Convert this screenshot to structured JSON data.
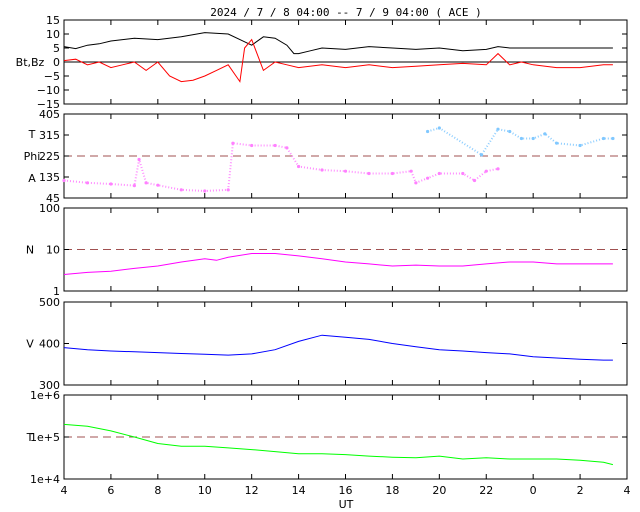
{
  "chart_data": {
    "type": "line",
    "title": "2024 /  7 /  8   04:00 -- 7 /  9   04:00 ( ACE )",
    "xlabel": "UT",
    "x_ticks": [
      "4",
      "6",
      "8",
      "10",
      "12",
      "14",
      "16",
      "18",
      "20",
      "22",
      "0",
      "2",
      "4"
    ],
    "x_range_hours": [
      4,
      28
    ],
    "panels": [
      {
        "id": "mag",
        "ylabel": "Bt,Bz",
        "ylim": [
          -15,
          15
        ],
        "yticks": [
          "15",
          "10",
          "5",
          "0",
          "−5",
          "−10",
          "−15"
        ],
        "ref_line": 0,
        "ref_style": "solid",
        "series": [
          {
            "label": "Bt",
            "color": "#000000",
            "points": [
              [
                4,
                5.5
              ],
              [
                4.5,
                4.8
              ],
              [
                5,
                6
              ],
              [
                5.5,
                6.5
              ],
              [
                6,
                7.5
              ],
              [
                7,
                8.5
              ],
              [
                8,
                8
              ],
              [
                9,
                9
              ],
              [
                10,
                10.5
              ],
              [
                11,
                10
              ],
              [
                11.5,
                8
              ],
              [
                12,
                6
              ],
              [
                12.5,
                9
              ],
              [
                13,
                8.5
              ],
              [
                13.5,
                6
              ],
              [
                13.8,
                3
              ],
              [
                14,
                3
              ],
              [
                14.5,
                4
              ],
              [
                15,
                5
              ],
              [
                16,
                4.5
              ],
              [
                17,
                5.5
              ],
              [
                18,
                5
              ],
              [
                19,
                4.5
              ],
              [
                20,
                5
              ],
              [
                21,
                4
              ],
              [
                22,
                4.5
              ],
              [
                22.5,
                5.5
              ],
              [
                23,
                5
              ],
              [
                24,
                5
              ],
              [
                25,
                5
              ],
              [
                26,
                5
              ],
              [
                27,
                5
              ],
              [
                27.4,
                5
              ]
            ]
          },
          {
            "label": "Bz",
            "color": "#ff0000",
            "points": [
              [
                4,
                0.5
              ],
              [
                4.5,
                1
              ],
              [
                5,
                -1
              ],
              [
                5.5,
                0
              ],
              [
                6,
                -2
              ],
              [
                6.5,
                -1
              ],
              [
                7,
                0
              ],
              [
                7.5,
                -3
              ],
              [
                8,
                0
              ],
              [
                8.5,
                -5
              ],
              [
                9,
                -7
              ],
              [
                9.5,
                -6.5
              ],
              [
                10,
                -5
              ],
              [
                10.5,
                -3
              ],
              [
                11,
                -1
              ],
              [
                11.5,
                -7
              ],
              [
                11.7,
                5
              ],
              [
                12,
                8
              ],
              [
                12.5,
                -3
              ],
              [
                13,
                0
              ],
              [
                13.5,
                -1
              ],
              [
                14,
                -2
              ],
              [
                15,
                -1
              ],
              [
                16,
                -2
              ],
              [
                17,
                -1
              ],
              [
                18,
                -2
              ],
              [
                19,
                -1.5
              ],
              [
                20,
                -1
              ],
              [
                21,
                -0.5
              ],
              [
                22,
                -1
              ],
              [
                22.5,
                3
              ],
              [
                23,
                -1
              ],
              [
                23.5,
                0
              ],
              [
                24,
                -1
              ],
              [
                25,
                -2
              ],
              [
                26,
                -2
              ],
              [
                27,
                -1
              ],
              [
                27.4,
                -1
              ]
            ]
          }
        ]
      },
      {
        "id": "phi",
        "ylabel_lines": [
          "T",
          "Phi",
          "A"
        ],
        "ylim": [
          45,
          405
        ],
        "yticks": [
          "405",
          "315",
          "225",
          "135",
          "45"
        ],
        "ref_line": 225,
        "ref_style": "dashed",
        "series": [
          {
            "label": "Phi",
            "color": "#ff80ff",
            "points": [
              [
                4,
                120
              ],
              [
                5,
                110
              ],
              [
                6,
                105
              ],
              [
                7,
                98
              ],
              [
                7.2,
                210
              ],
              [
                7.5,
                110
              ],
              [
                8,
                100
              ],
              [
                9,
                80
              ],
              [
                10,
                75
              ],
              [
                11,
                80
              ],
              [
                11.2,
                280
              ],
              [
                12,
                270
              ],
              [
                13,
                270
              ],
              [
                13.5,
                260
              ],
              [
                14,
                180
              ],
              [
                15,
                165
              ],
              [
                16,
                160
              ],
              [
                17,
                150
              ],
              [
                18,
                150
              ],
              [
                18.8,
                160
              ],
              [
                19,
                110
              ],
              [
                19.5,
                130
              ],
              [
                20,
                150
              ],
              [
                21,
                150
              ],
              [
                21.5,
                120
              ],
              [
                22,
                160
              ],
              [
                22.5,
                170
              ]
            ]
          },
          {
            "label": "T",
            "color": "#80c8ff",
            "points": [
              [
                19.5,
                330
              ],
              [
                20,
                345
              ],
              [
                21.8,
                230
              ],
              [
                22.5,
                340
              ],
              [
                23,
                330
              ],
              [
                23.5,
                300
              ],
              [
                24,
                300
              ],
              [
                24.5,
                320
              ],
              [
                25,
                280
              ],
              [
                26,
                270
              ],
              [
                27,
                300
              ],
              [
                27.4,
                300
              ]
            ]
          }
        ]
      },
      {
        "id": "density",
        "ylabel": "N",
        "scale": "log",
        "ylim": [
          1,
          100
        ],
        "yticks": [
          "100",
          "10",
          "1"
        ],
        "ref_line": 10,
        "ref_style": "dashed",
        "series": [
          {
            "label": "N",
            "color": "#ff00ff",
            "points": [
              [
                4,
                2.5
              ],
              [
                5,
                2.8
              ],
              [
                6,
                3
              ],
              [
                7,
                3.5
              ],
              [
                8,
                4
              ],
              [
                9,
                5
              ],
              [
                10,
                6
              ],
              [
                10.5,
                5.5
              ],
              [
                11,
                6.5
              ],
              [
                12,
                8
              ],
              [
                13,
                8
              ],
              [
                14,
                7
              ],
              [
                15,
                6
              ],
              [
                16,
                5
              ],
              [
                17,
                4.5
              ],
              [
                18,
                4
              ],
              [
                19,
                4.2
              ],
              [
                20,
                4
              ],
              [
                21,
                4
              ],
              [
                22,
                4.5
              ],
              [
                23,
                5
              ],
              [
                24,
                5
              ],
              [
                25,
                4.5
              ],
              [
                26,
                4.5
              ],
              [
                27,
                4.5
              ],
              [
                27.4,
                4.5
              ]
            ]
          }
        ]
      },
      {
        "id": "velocity",
        "ylabel": "V",
        "ylim": [
          300,
          500
        ],
        "yticks": [
          "500",
          "400",
          "300"
        ],
        "series": [
          {
            "label": "V",
            "color": "#0000ff",
            "points": [
              [
                4,
                390
              ],
              [
                5,
                385
              ],
              [
                6,
                382
              ],
              [
                7,
                380
              ],
              [
                8,
                378
              ],
              [
                9,
                376
              ],
              [
                10,
                374
              ],
              [
                11,
                372
              ],
              [
                12,
                375
              ],
              [
                13,
                385
              ],
              [
                14,
                405
              ],
              [
                15,
                420
              ],
              [
                16,
                415
              ],
              [
                17,
                410
              ],
              [
                18,
                400
              ],
              [
                19,
                392
              ],
              [
                20,
                385
              ],
              [
                21,
                382
              ],
              [
                22,
                378
              ],
              [
                23,
                375
              ],
              [
                24,
                368
              ],
              [
                25,
                365
              ],
              [
                26,
                362
              ],
              [
                27,
                360
              ],
              [
                27.4,
                360
              ]
            ]
          }
        ]
      },
      {
        "id": "temperature",
        "ylabel": "T",
        "scale": "log",
        "ylim": [
          10000,
          1000000
        ],
        "yticks": [
          "1e+6",
          "1e+5",
          "1e+4"
        ],
        "ref_line": 100000,
        "ref_style": "dashed",
        "series": [
          {
            "label": "T",
            "color": "#00ff00",
            "points": [
              [
                4,
                200000
              ],
              [
                5,
                180000
              ],
              [
                6,
                140000
              ],
              [
                7,
                100000
              ],
              [
                8,
                70000
              ],
              [
                9,
                60000
              ],
              [
                10,
                60000
              ],
              [
                11,
                55000
              ],
              [
                12,
                50000
              ],
              [
                13,
                45000
              ],
              [
                14,
                40000
              ],
              [
                15,
                40000
              ],
              [
                16,
                38000
              ],
              [
                17,
                35000
              ],
              [
                18,
                33000
              ],
              [
                19,
                32000
              ],
              [
                20,
                35000
              ],
              [
                21,
                30000
              ],
              [
                22,
                32000
              ],
              [
                23,
                30000
              ],
              [
                24,
                30000
              ],
              [
                25,
                30000
              ],
              [
                26,
                28000
              ],
              [
                27,
                25000
              ],
              [
                27.4,
                22000
              ]
            ]
          }
        ]
      }
    ]
  }
}
